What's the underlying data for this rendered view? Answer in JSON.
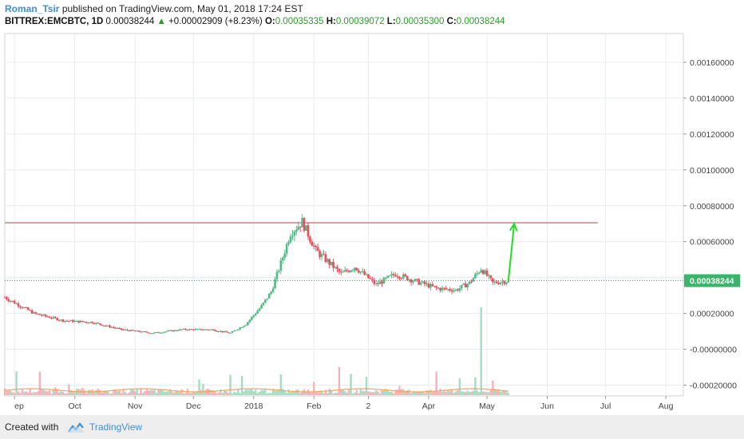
{
  "header": {
    "author": "Roman_Tsir",
    "published": "published on TradingView.com, May 01, 2018 17:24 EST",
    "symbol": "BITTREX:EMCBTC, 1D",
    "last": "0.00038244",
    "change_arrow": "▲",
    "change": "+0.00002909 (+8.23%)",
    "o_label": "O:",
    "o_val": "0.00035335",
    "h_label": "H:",
    "h_val": "0.00039072",
    "l_label": "L:",
    "l_val": "0.00035300",
    "c_label": "C:",
    "c_val": "0.00038244"
  },
  "footer": {
    "created_with": "Created with",
    "brand": "TradingView",
    "logo_icon": "tradingview-cloud-icon"
  },
  "colors": {
    "up": "#53b987",
    "down": "#eb4d5c",
    "resistance": "#d87c86",
    "arrow": "#22dd22",
    "price_line": "#2e9c73",
    "price_badge": "#3bb46b",
    "volume_up": "#a8dcc2",
    "volume_down": "#f2b3ba",
    "volume_ma": "#f5a25d"
  },
  "chart_data": {
    "type": "candlestick",
    "x_ticks": [
      "ep",
      "Oct",
      "Nov",
      "Dec",
      "2018",
      "Feb",
      "2",
      "Apr",
      "May",
      "Jun",
      "Jul",
      "Aug"
    ],
    "y_ticks": [
      "0.00160000",
      "0.00140000",
      "0.00120000",
      "0.00100000",
      "0.00080000",
      "0.00060000",
      "0.00040000",
      "0.00020000",
      "-0.00000000",
      "-0.00020000"
    ],
    "ylim": [
      -0.00026,
      0.00176
    ],
    "current_price_label": "0.00038244",
    "current_price": 0.00038244,
    "resistance_level": 0.000705,
    "price_path": [
      [
        "2017-08-26",
        0.00029
      ],
      [
        "2017-09-10",
        0.0002
      ],
      [
        "2017-09-25",
        0.00016
      ],
      [
        "2017-10-10",
        0.00015
      ],
      [
        "2017-10-25",
        0.00011
      ],
      [
        "2017-11-10",
        9e-05
      ],
      [
        "2017-11-25",
        0.00011
      ],
      [
        "2017-12-10",
        0.00011
      ],
      [
        "2017-12-20",
        9e-05
      ],
      [
        "2017-12-28",
        0.00014
      ],
      [
        "2018-01-05",
        0.00024
      ],
      [
        "2018-01-10",
        0.00032
      ],
      [
        "2018-01-15",
        0.00048
      ],
      [
        "2018-01-20",
        0.00065
      ],
      [
        "2018-01-26",
        0.00071
      ],
      [
        "2018-02-02",
        0.00055
      ],
      [
        "2018-02-08",
        0.00049
      ],
      [
        "2018-02-15",
        0.00042
      ],
      [
        "2018-02-22",
        0.00046
      ],
      [
        "2018-03-05",
        0.00036
      ],
      [
        "2018-03-15",
        0.00042
      ],
      [
        "2018-03-25",
        0.00038
      ],
      [
        "2018-04-05",
        0.00034
      ],
      [
        "2018-04-15",
        0.00033
      ],
      [
        "2018-04-22",
        0.00037
      ],
      [
        "2018-04-28",
        0.00045
      ],
      [
        "2018-05-04",
        0.00037
      ],
      [
        "2018-05-12",
        0.00038244
      ]
    ],
    "projection_arrow": {
      "from": [
        "2018-05-12",
        0.00038
      ],
      "to": [
        "2018-05-15",
        0.0007
      ]
    },
    "volume_spike_date": "2018-04-28",
    "grid": true,
    "legend": "none"
  }
}
